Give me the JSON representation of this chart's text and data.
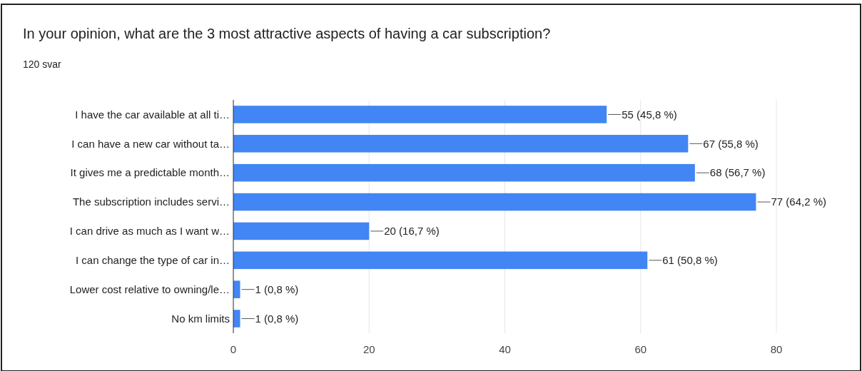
{
  "chart_data": {
    "type": "bar",
    "orientation": "horizontal",
    "title": "In your opinion, what are the 3 most attractive aspects of having a car subscription?",
    "subtitle": "120 svar",
    "categories": [
      "I have the car available at all ti…",
      "I can have a new car without ta…",
      "It gives me a predictable month…",
      "The subscription includes servi…",
      "I can drive as much as I want w…",
      "I can change the type of car in…",
      "Lower cost relative to owning/le…",
      "No km limits"
    ],
    "values": [
      55,
      67,
      68,
      77,
      20,
      61,
      1,
      1
    ],
    "value_labels": [
      "55 (45,8 %)",
      "67 (55,8 %)",
      "68 (56,7 %)",
      "77 (64,2 %)",
      "20 (16,7 %)",
      "61 (50,8 %)",
      "1 (0,8 %)",
      "1 (0,8 %)"
    ],
    "color": "#4285f4",
    "xlim": [
      0,
      80
    ],
    "xticks": [
      0,
      20,
      40,
      60,
      80
    ],
    "grid": "x"
  }
}
